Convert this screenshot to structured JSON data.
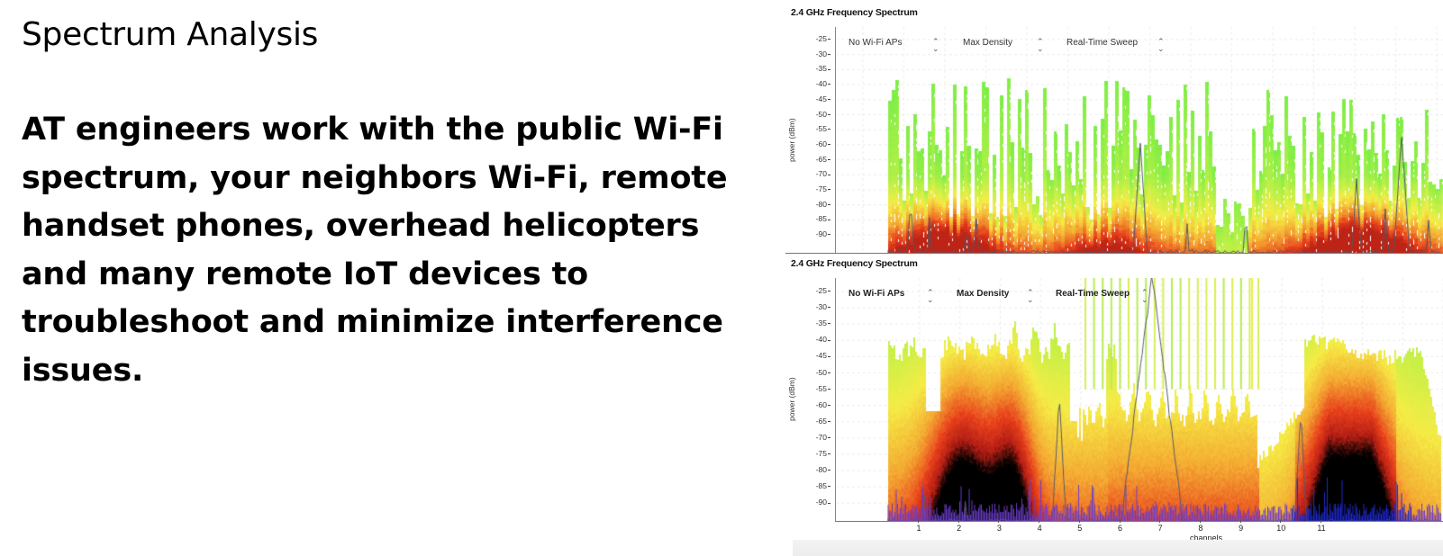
{
  "slide": {
    "title": "Spectrum Analysis",
    "body": "AT engineers work with the public Wi-Fi spectrum, your neighbors Wi-Fi, remote handset phones, overhead helicopters and many remote IoT devices to troubleshoot and minimize interference issues."
  },
  "panels": [
    {
      "title": "2.4 GHz Frequency Spectrum",
      "ylabel": "power (dBm)",
      "controls": [
        {
          "label": "No Wi-Fi APs",
          "icon": "updown-icon"
        },
        {
          "label": "Max Density",
          "icon": "updown-icon"
        },
        {
          "label": "Real-Time Sweep",
          "icon": "updown-icon"
        }
      ]
    },
    {
      "title": "2.4 GHz Frequency Spectrum",
      "ylabel": "power (dBm)",
      "xlabel": "channels",
      "controls": [
        {
          "label": "No Wi-Fi APs",
          "icon": "updown-icon"
        },
        {
          "label": "Max Density",
          "icon": "updown-icon"
        },
        {
          "label": "Real-Time Sweep",
          "icon": "updown-icon"
        }
      ]
    }
  ],
  "colors": {
    "low_density": "#77ee44",
    "mid_density": "#f5ee44",
    "high_density": "#e8401c",
    "max_density": "#000000",
    "trace_line": "#555566",
    "trace_blue": "#2222cc"
  },
  "chart_data": [
    {
      "type": "heatmap",
      "title": "2.4 GHz Frequency Spectrum",
      "subtitle": "No Wi-Fi APs / Max Density / Real-Time Sweep",
      "xlabel": "",
      "ylabel": "power (dBm)",
      "yticks": [
        -25,
        -30,
        -35,
        -40,
        -45,
        -50,
        -55,
        -60,
        -65,
        -70,
        -75,
        -80,
        -85,
        -90
      ],
      "ylim": [
        -95,
        -20
      ],
      "grid": true,
      "description": "Sparse bursty spectrum: green peaks reach about -38 to -45 dBm, high-density red region around channels 1-3 and channels 10-12, with density trace peaks near -60 dBm (channel 5) and -57 dBm (channel 11)",
      "peaks_dbm": {
        "ch0.5": -78,
        "ch5": -60,
        "ch11": -57,
        "ch10": -72
      },
      "max_envelope_dbm": [
        -55,
        -40,
        -41,
        -42,
        -38,
        -42,
        -43,
        -41,
        -42,
        -40,
        -45,
        -41,
        -38,
        -42,
        -40,
        -43,
        -41,
        -50,
        -58,
        -42,
        -45,
        -38,
        -42,
        -40,
        -43,
        -55,
        -60
      ]
    },
    {
      "type": "heatmap",
      "title": "2.4 GHz Frequency Spectrum",
      "subtitle": "No Wi-Fi APs / Max Density / Real-Time Sweep",
      "xlabel": "channels",
      "ylabel": "power (dBm)",
      "categories": [
        "1",
        "2",
        "3",
        "4",
        "5",
        "6",
        "7",
        "8",
        "9",
        "10",
        "11"
      ],
      "yticks": [
        -25,
        -30,
        -35,
        -40,
        -45,
        -50,
        -55,
        -60,
        -65,
        -70,
        -75,
        -80,
        -85,
        -90
      ],
      "ylim": [
        -95,
        -20
      ],
      "grid": true,
      "description": "Dense continuous spectrum: green envelope near -30 to -40 dBm on channels 0-3, comb of narrow spikes from channel 3.8 to 8 reaching -20 dBm, wide signal on channels 9-12 at about -40 dBm with black max-density core around channels 10-12",
      "peaks_dbm": {
        "ch4.5": -56,
        "ch5.5": -20,
        "ch9.5": -60
      },
      "max_envelope_dbm": [
        -35,
        -30,
        -33,
        -45,
        -33,
        -31,
        -40,
        -55,
        -35,
        -22,
        -22,
        -22,
        -22,
        -22,
        -80,
        -65,
        -42,
        -40,
        -40,
        -44,
        -58
      ]
    }
  ]
}
